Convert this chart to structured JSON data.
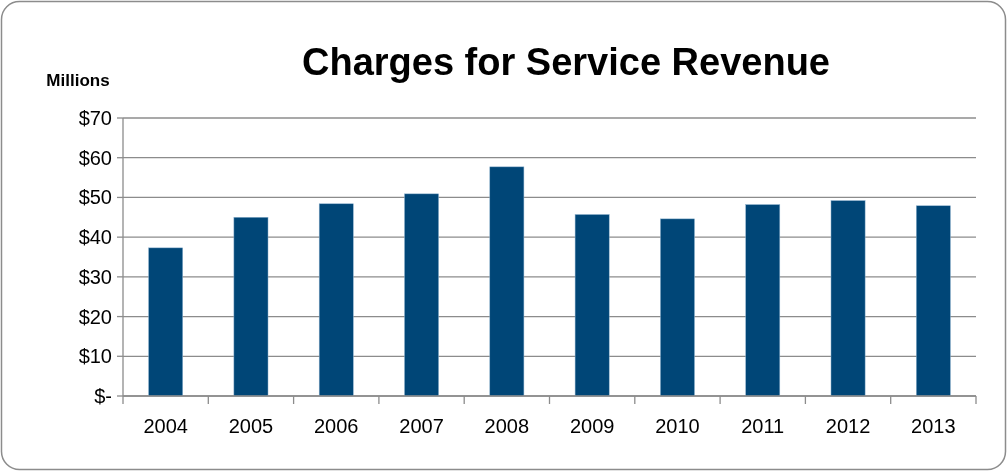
{
  "chart_data": {
    "type": "bar",
    "title": "Charges for Service Revenue",
    "ylabel": "Millions",
    "categories": [
      "2004",
      "2005",
      "2006",
      "2007",
      "2008",
      "2009",
      "2010",
      "2011",
      "2012",
      "2013"
    ],
    "values": [
      37.3,
      45.0,
      48.4,
      50.9,
      57.7,
      45.7,
      44.6,
      48.2,
      49.2,
      47.9
    ],
    "color": "#004677",
    "ylim": [
      0,
      70
    ],
    "yticks": [
      {
        "value": 0,
        "label": "$-"
      },
      {
        "value": 10,
        "label": "$10"
      },
      {
        "value": 20,
        "label": "$20"
      },
      {
        "value": 30,
        "label": "$30"
      },
      {
        "value": 40,
        "label": "$40"
      },
      {
        "value": 50,
        "label": "$50"
      },
      {
        "value": 60,
        "label": "$60"
      },
      {
        "value": 70,
        "label": "$70"
      }
    ],
    "grid": "y"
  }
}
